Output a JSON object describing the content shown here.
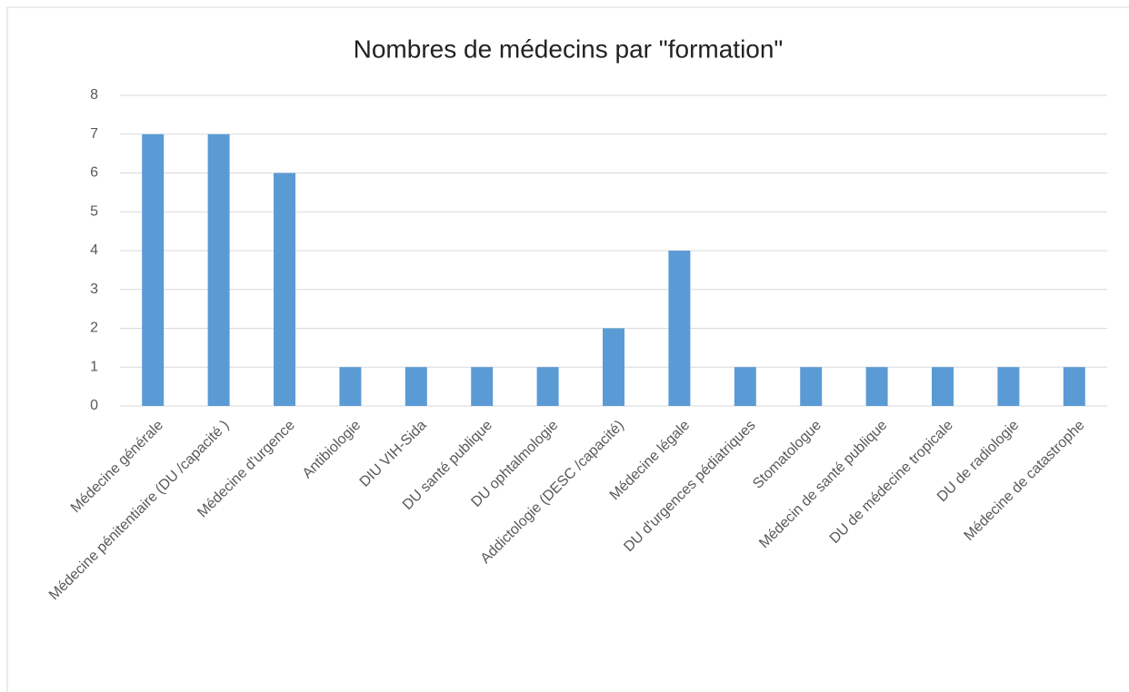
{
  "chart_data": {
    "type": "bar",
    "title": "Nombres de médecins par \"formation\"",
    "categories": [
      "Médecine générale",
      "Médecine pénitentiaire (DU /capacité )",
      "Médecine d'urgence",
      "Antibiologie",
      "DIU VIH-Sida",
      "DU santé publique",
      "DU ophtalmologie",
      "Addictologie (DESC /capacité)",
      "Médecine légale",
      "DU d'urgences pédiatriques",
      "Stomatologue",
      "Médecin de santé publique",
      "DU de médecine tropicale",
      "DU de radiologie",
      "Médecine de catastrophe"
    ],
    "values": [
      7,
      7,
      6,
      1,
      1,
      1,
      1,
      2,
      4,
      1,
      1,
      1,
      1,
      1,
      1
    ],
    "color": "#5b9bd5",
    "ylim": [
      0,
      8
    ],
    "yticks": [
      0,
      1,
      2,
      3,
      4,
      5,
      6,
      7,
      8
    ],
    "grid": true
  }
}
